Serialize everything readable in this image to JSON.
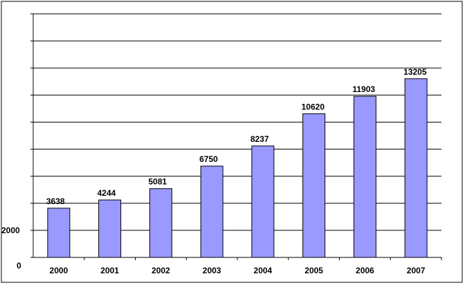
{
  "chart_data": {
    "type": "bar",
    "title": "",
    "xlabel": "",
    "ylabel": "",
    "categories": [
      "2000",
      "2001",
      "2002",
      "2003",
      "2004",
      "2005",
      "2006",
      "2007"
    ],
    "values": [
      3638,
      4244,
      5081,
      6750,
      8237,
      10620,
      11903,
      13205
    ],
    "value_labels": [
      "3638",
      "4244",
      "5081",
      "6750",
      "8237",
      "10620",
      "11903",
      "13205"
    ],
    "y_tick_labels": [
      {
        "value": 0,
        "label": "0"
      },
      {
        "value": 2000,
        "label": "2000"
      }
    ],
    "ylim": [
      0,
      18000
    ],
    "grid": true,
    "legend": "none",
    "colors": {
      "bar_fill": "#9999ff",
      "bar_stroke": "#000000",
      "grid": "#000000",
      "plot_bg": "#ffffff"
    }
  }
}
